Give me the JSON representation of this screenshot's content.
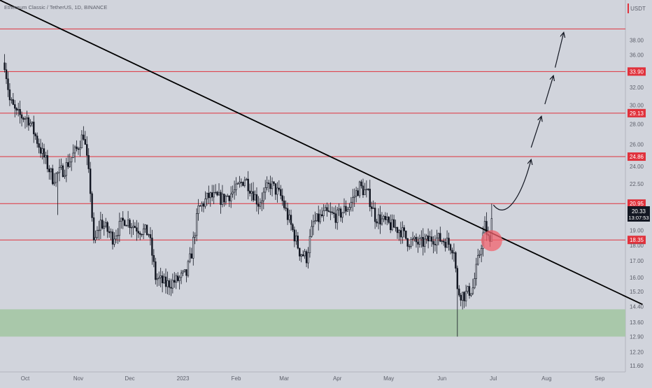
{
  "header": {
    "symbol_title": "Ethereum Classic / TetherUS, 1D, BINANCE",
    "currency": "USDT"
  },
  "colors": {
    "background": "#d1d4dc",
    "axis_text": "#5d606b",
    "hline": "#e0323c",
    "badge": "#e0323c",
    "price_badge": "#131722",
    "trendline": "#000000",
    "candle": "#131722",
    "zone": "#a9c8aa",
    "circle": "#f2636e"
  },
  "chart_data": {
    "type": "candlestick",
    "title": "Ethereum Classic / TetherUS, 1D, BINANCE",
    "y_scale": "log",
    "ylim": [
      11.4,
      44
    ],
    "y_ticks": [
      "38.00",
      "36.00",
      "33.90",
      "32.00",
      "30.00",
      "29.13",
      "28.00",
      "26.00",
      "24.86",
      "24.00",
      "22.50",
      "20.95",
      "20.33",
      "19.00",
      "18.35",
      "18.00",
      "17.00",
      "16.00",
      "15.20",
      "14.40",
      "13.60",
      "12.90",
      "12.20",
      "11.60"
    ],
    "x_ticks": [
      "Oct",
      "Nov",
      "Dec",
      "2023",
      "Feb",
      "Mar",
      "Apr",
      "May",
      "Jun",
      "Jul",
      "Aug",
      "Sep"
    ],
    "last_price": {
      "price": "20.33",
      "countdown": "13:07:53",
      "value": 20.33
    },
    "horizontal_levels": [
      {
        "value": 39.6,
        "label": ""
      },
      {
        "value": 33.9,
        "label": "33.90"
      },
      {
        "value": 29.13,
        "label": "29.13"
      },
      {
        "value": 24.86,
        "label": "24.86"
      },
      {
        "value": 20.95,
        "label": "20.95"
      },
      {
        "value": 18.35,
        "label": "18.35"
      }
    ],
    "support_zone": {
      "from": 12.9,
      "to": 14.25
    },
    "trendline": {
      "from": {
        "date": "2022-09-20",
        "value": 43.5
      },
      "to": {
        "date": "2023-09-26",
        "value": 14.5
      }
    },
    "breakout_circle": {
      "date": "2023-06-30",
      "value": 18.3
    },
    "projection": {
      "curve": [
        [
          "2023-07-01",
          20.85
        ],
        [
          "2023-07-08",
          19.7
        ],
        [
          "2023-07-17",
          21.3
        ],
        [
          "2023-07-23",
          24.6
        ]
      ],
      "arrows": [
        [
          [
            "2023-07-23",
            25.7
          ],
          [
            "2023-07-29",
            28.8
          ]
        ],
        [
          [
            "2023-07-31",
            30.1
          ],
          [
            "2023-08-05",
            33.4
          ]
        ],
        [
          [
            "2023-08-06",
            34.4
          ],
          [
            "2023-08-11",
            39.1
          ]
        ]
      ]
    },
    "key_closes": [
      [
        "2022-09-19",
        35.0
      ],
      [
        "2022-09-22",
        30.5
      ],
      [
        "2022-09-26",
        29.0
      ],
      [
        "2022-10-03",
        28.5
      ],
      [
        "2022-10-10",
        25.5
      ],
      [
        "2022-10-17",
        23.0
      ],
      [
        "2022-10-24",
        23.8
      ],
      [
        "2022-10-31",
        25.5
      ],
      [
        "2022-11-04",
        27.0
      ],
      [
        "2022-11-08",
        22.0
      ],
      [
        "2022-11-10",
        18.0
      ],
      [
        "2022-11-14",
        19.6
      ],
      [
        "2022-11-21",
        18.5
      ],
      [
        "2022-11-28",
        19.8
      ],
      [
        "2022-12-05",
        19.2
      ],
      [
        "2022-12-12",
        18.8
      ],
      [
        "2022-12-16",
        16.0
      ],
      [
        "2022-12-22",
        15.6
      ],
      [
        "2022-12-28",
        15.8
      ],
      [
        "2023-01-03",
        16.2
      ],
      [
        "2023-01-06",
        17.5
      ],
      [
        "2023-01-10",
        20.5
      ],
      [
        "2023-01-16",
        21.5
      ],
      [
        "2023-01-24",
        21.3
      ],
      [
        "2023-02-01",
        22.0
      ],
      [
        "2023-02-06",
        23.0
      ],
      [
        "2023-02-14",
        21.0
      ],
      [
        "2023-02-21",
        22.5
      ],
      [
        "2023-02-27",
        21.5
      ],
      [
        "2023-03-03",
        20.0
      ],
      [
        "2023-03-10",
        17.6
      ],
      [
        "2023-03-14",
        17.2
      ],
      [
        "2023-03-18",
        19.5
      ],
      [
        "2023-03-25",
        20.2
      ],
      [
        "2023-04-01",
        20.0
      ],
      [
        "2023-04-08",
        20.8
      ],
      [
        "2023-04-14",
        22.3
      ],
      [
        "2023-04-19",
        21.6
      ],
      [
        "2023-04-23",
        20.0
      ],
      [
        "2023-05-01",
        19.4
      ],
      [
        "2023-05-08",
        19.0
      ],
      [
        "2023-05-12",
        18.3
      ],
      [
        "2023-05-20",
        18.1
      ],
      [
        "2023-05-27",
        18.5
      ],
      [
        "2023-06-03",
        18.3
      ],
      [
        "2023-06-08",
        17.8
      ],
      [
        "2023-06-10",
        15.2
      ],
      [
        "2023-06-14",
        15.0
      ],
      [
        "2023-06-19",
        15.4
      ],
      [
        "2023-06-23",
        17.5
      ],
      [
        "2023-06-26",
        19.3
      ],
      [
        "2023-06-29",
        18.0
      ],
      [
        "2023-06-30",
        20.33
      ]
    ]
  }
}
